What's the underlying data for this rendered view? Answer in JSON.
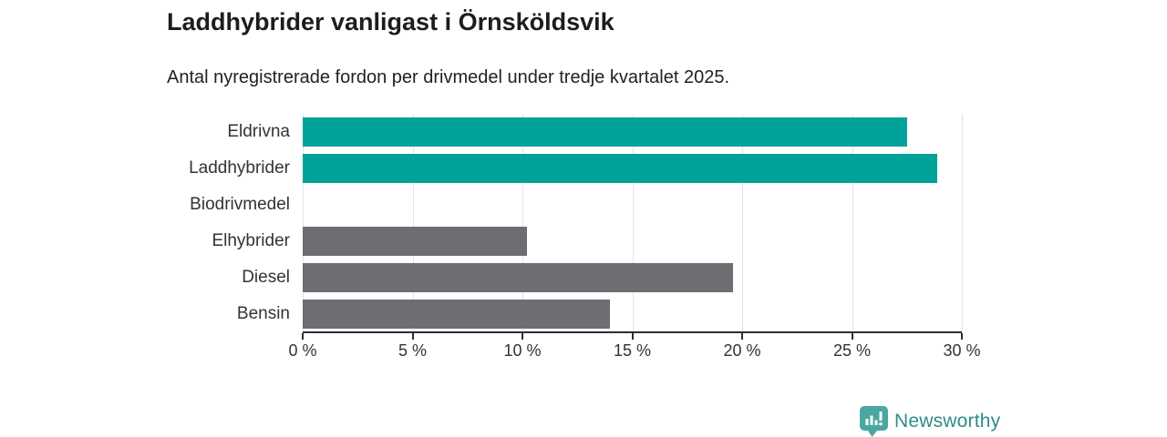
{
  "header": {
    "title": "Laddhybrider vanligast i Örnsköldsvik",
    "subtitle": "Antal nyregistrerade fordon per drivmedel under tredje kvartalet 2025."
  },
  "chart_data": {
    "type": "bar",
    "orientation": "horizontal",
    "title": "Laddhybrider vanligast i Örnsköldsvik",
    "subtitle": "Antal nyregistrerade fordon per drivmedel under tredje kvartalet 2025.",
    "categories": [
      "Eldrivna",
      "Laddhybrider",
      "Biodrivmedel",
      "Elhybrider",
      "Diesel",
      "Bensin"
    ],
    "values": [
      27.5,
      28.9,
      0,
      10.2,
      19.6,
      14.0
    ],
    "highlighted": [
      true,
      true,
      false,
      false,
      false,
      false
    ],
    "unit": "%",
    "xlim": [
      0,
      30
    ],
    "xticks": [
      0,
      5,
      10,
      15,
      20,
      25,
      30
    ],
    "xtick_labels": [
      "0 %",
      "5 %",
      "10 %",
      "15 %",
      "20 %",
      "25 %",
      "30 %"
    ],
    "grid": true,
    "legend": "none",
    "colors": {
      "highlight": "#00a29a",
      "default": "#6e6d71",
      "gridline": "#e4e4e4",
      "axis": "#2f2f2f",
      "label_text": "#333333"
    }
  },
  "footer": {
    "brand": "Newsworthy",
    "brand_color": "#2f8b86",
    "icon": "newsworthy-logo-icon",
    "icon_color": "#4ba7a1"
  }
}
